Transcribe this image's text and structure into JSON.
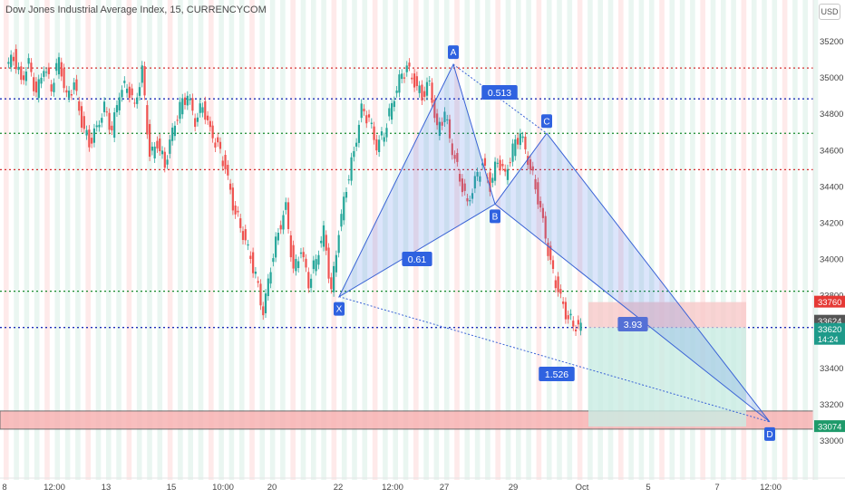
{
  "header": {
    "title": "Dow Jones Industrial Average Index, 15, CURRENCYCOM",
    "currency": "USD"
  },
  "colors": {
    "up": "#26a69a",
    "down": "#ef5350",
    "pattern_fill": "#3f6ee8",
    "pattern_line": "#3a63d6",
    "label_bg": "#2f62e0",
    "red_level": "#d32f2f",
    "blue_level": "#1d2db8",
    "green_level": "#178a2c",
    "stop_zone": "#f8c9c9",
    "target_zone": "#c9ece4",
    "support_zone": "#f7b3b3"
  },
  "chart_data": {
    "type": "line",
    "title": "Dow Jones Industrial Average Index, 15, CURRENCYCOM",
    "ylim": [
      32900,
      35300
    ],
    "y_ticks": [
      33000,
      33200,
      33400,
      33600,
      33800,
      34000,
      34200,
      34400,
      34600,
      34800,
      35000,
      35200
    ],
    "x_ticks": [
      "8",
      "12:00",
      "13",
      "15",
      "10:00",
      "20",
      "22",
      "12:00",
      "27",
      "29",
      "Oct",
      "5",
      "7",
      "12:00"
    ],
    "series": [
      {
        "values": [
          35050,
          35120,
          34980,
          35070,
          34900,
          35060,
          34950,
          35100,
          34880,
          34960,
          34750,
          34640,
          34720,
          34830,
          34700,
          34920,
          34960,
          34840,
          35030,
          34560,
          34640,
          34520,
          34700,
          34830,
          34900,
          34760,
          34850,
          34700,
          34610,
          34500,
          34300,
          34180,
          34050,
          33900,
          33700,
          33960,
          34150,
          34280,
          33920,
          34050,
          33870,
          34000,
          34150,
          33810,
          34150,
          34400,
          34590,
          34820,
          34760,
          34620,
          34700,
          34850,
          34980,
          35050,
          34970,
          34900,
          34970,
          34700,
          34800,
          34600,
          34450,
          34300,
          34420,
          34520,
          34400,
          34550,
          34460,
          34600,
          34690,
          34550,
          34400,
          34200,
          33960,
          33820,
          33700,
          33640,
          33620
        ]
      }
    ],
    "pattern": {
      "points": [
        {
          "label": "X",
          "price": 33790
        },
        {
          "label": "A",
          "price": 35070
        },
        {
          "label": "B",
          "price": 34300
        },
        {
          "label": "C",
          "price": 34690
        },
        {
          "label": "D",
          "price": 33100
        }
      ],
      "ratios": [
        "0.513",
        "0.61",
        "1.526",
        "3.93"
      ]
    },
    "levels": [
      {
        "price": 35050,
        "color": "red"
      },
      {
        "price": 34880,
        "color": "blue"
      },
      {
        "price": 34690,
        "color": "green"
      },
      {
        "price": 34490,
        "color": "red"
      },
      {
        "price": 33820,
        "color": "green"
      },
      {
        "price": 33620,
        "color": "blue"
      }
    ],
    "position": {
      "stop": 33760,
      "entry": 33620,
      "target": 33074
    },
    "support_zone": [
      33060,
      33160
    ],
    "price_labels": [
      {
        "text": "33760",
        "price": 33760,
        "bg": "#e53935",
        "fg": "#ffffff"
      },
      {
        "text": "33624",
        "price": 33655,
        "bg": "#555555",
        "fg": "#ffffff"
      },
      {
        "text": "33620",
        "price": 33610,
        "bg": "#1e9a8a",
        "fg": "#ffffff",
        "sub": "14:24"
      },
      {
        "text": "33074",
        "price": 33074,
        "bg": "#1e9a6a",
        "fg": "#ffffff"
      }
    ]
  }
}
